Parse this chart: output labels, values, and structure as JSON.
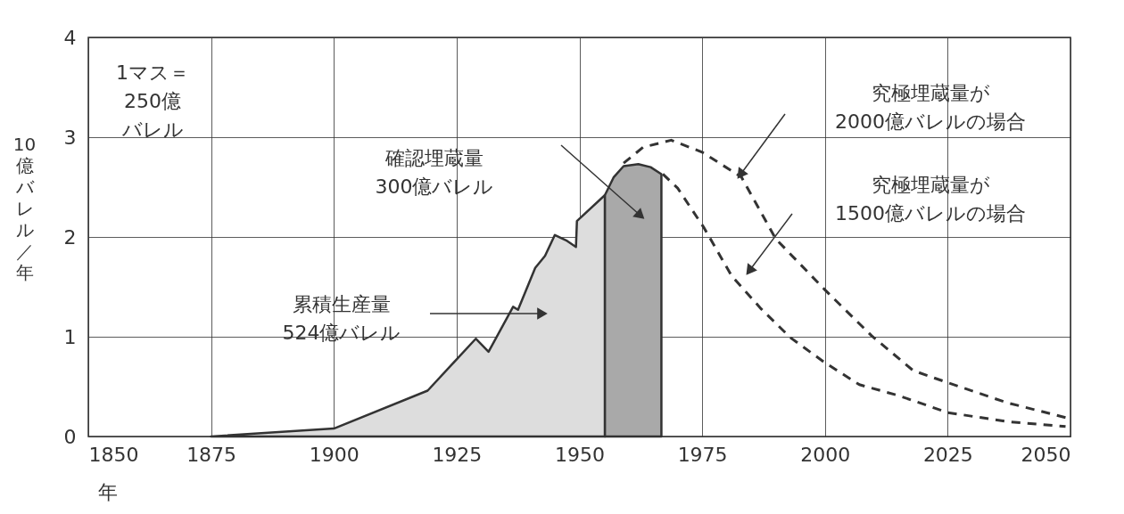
{
  "chart_data": {
    "type": "area",
    "xlabel": "年",
    "ylabel": "10億バレル／年",
    "xlim": [
      1850,
      2050
    ],
    "xticks": [
      1850,
      1875,
      1900,
      1925,
      1950,
      1975,
      2000,
      2025,
      2050
    ],
    "ylim": [
      0,
      4
    ],
    "yticks": [
      0,
      1,
      2,
      3,
      4
    ],
    "grid": true,
    "series": [
      {
        "color": "#dddddd",
        "x": [
          1875,
          1900,
          1919.1,
          1928.9,
          1931.5,
          1936.5,
          1937.5,
          1941,
          1943,
          1945,
          1947.5,
          1949.3,
          1949.5,
          1955.2
        ],
        "values": [
          0,
          0.08,
          0.46,
          0.98,
          0.85,
          1.3,
          1.27,
          1.69,
          1.81,
          2.02,
          1.96,
          1.9,
          2.16,
          2.42
        ]
      },
      {
        "color": "#a9a9a9",
        "x": [
          1955.2,
          1957,
          1959,
          1962,
          1964.5,
          1966.7
        ],
        "values": [
          2.42,
          2.6,
          2.71,
          2.73,
          2.7,
          2.63
        ]
      },
      {
        "type": "line",
        "line_style": "dashed",
        "color": "#333333",
        "x": [
          1959,
          1963,
          1968.7,
          1975,
          1983,
          1990,
          2000,
          2009.5,
          2018,
          2025,
          2037,
          2049
        ],
        "values": [
          2.74,
          2.9,
          2.97,
          2.85,
          2.6,
          1.98,
          1.47,
          1.01,
          0.66,
          0.54,
          0.34,
          0.19
        ]
      },
      {
        "type": "line",
        "line_style": "dashed",
        "color": "#333333",
        "x": [
          1967,
          1970,
          1975.4,
          1981,
          1987,
          1993,
          2000,
          2007,
          2015,
          2025,
          2037,
          2049
        ],
        "values": [
          2.63,
          2.49,
          2.09,
          1.61,
          1.28,
          0.99,
          0.74,
          0.52,
          0.41,
          0.24,
          0.15,
          0.1
        ]
      }
    ],
    "annotations": [
      "1マス＝250億バレル",
      "累積生産量524億バレル",
      "確認埋蔵量300億バレル",
      "究極埋蔵量が2000億バレルの場合",
      "究極埋蔵量が1500億バレルの場合"
    ]
  }
}
